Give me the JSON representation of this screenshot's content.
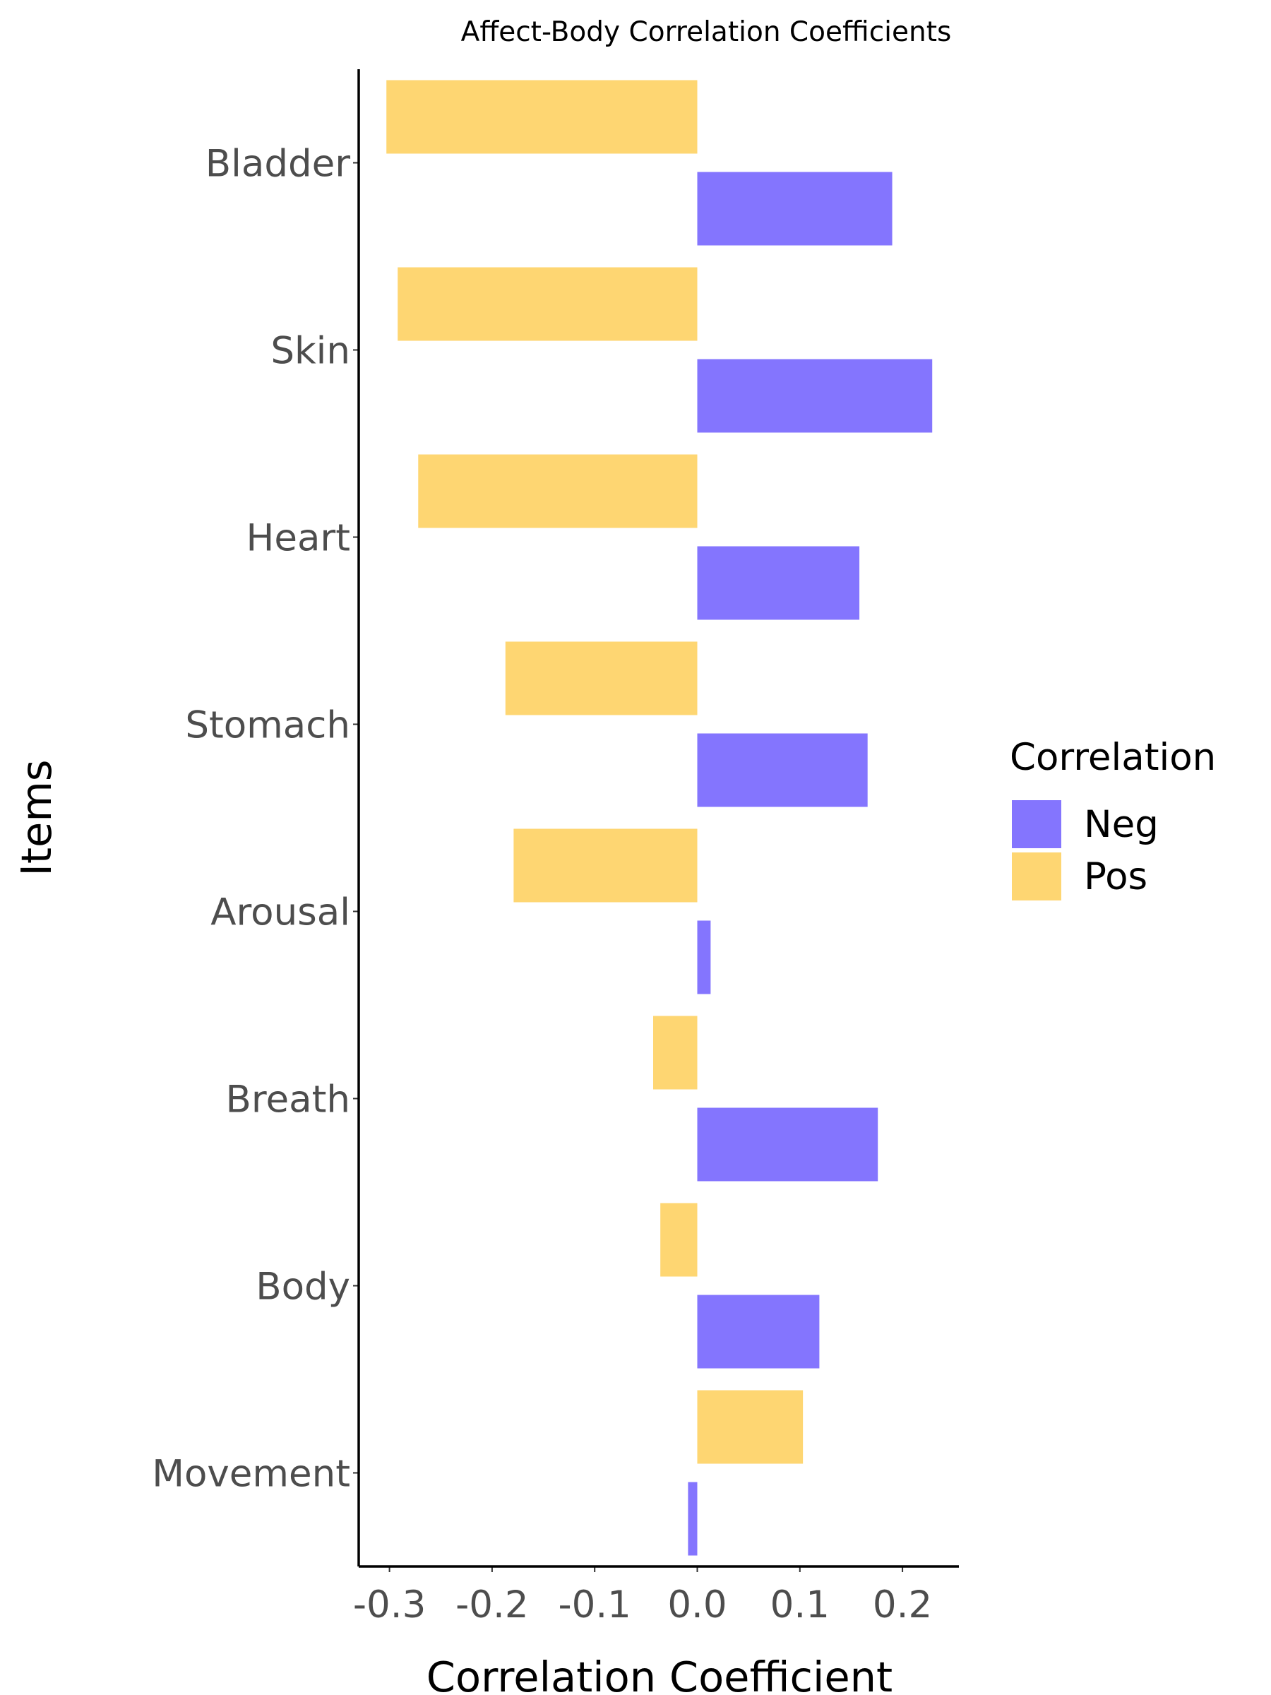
{
  "chart_data": {
    "type": "bar",
    "orientation": "horizontal",
    "title": "Affect-Body Correlation Coefficients",
    "xlabel": "Correlation Coefficient",
    "ylabel": "Items",
    "categories": [
      "Bladder",
      "Skin",
      "Heart",
      "Stomach",
      "Arousal",
      "Breath",
      "Body",
      "Movement"
    ],
    "series": [
      {
        "name": "Neg",
        "color": "#8475fe",
        "values": [
          0.19,
          0.229,
          0.158,
          0.166,
          0.013,
          0.176,
          0.119,
          -0.009
        ]
      },
      {
        "name": "Pos",
        "color": "#fed672",
        "values": [
          -0.303,
          -0.292,
          -0.272,
          -0.187,
          -0.179,
          -0.043,
          -0.036,
          0.103
        ]
      }
    ],
    "xlim": [
      -0.33,
      0.255
    ],
    "xticks": [
      "-0.3",
      "-0.2",
      "-0.1",
      "0.0",
      "0.1",
      "0.2"
    ],
    "xtick_values": [
      -0.3,
      -0.2,
      -0.1,
      0.0,
      0.1,
      0.2
    ],
    "grid": false,
    "legend": {
      "title": "Correlation",
      "placement": "right",
      "entries": [
        "Neg",
        "Pos"
      ]
    }
  }
}
